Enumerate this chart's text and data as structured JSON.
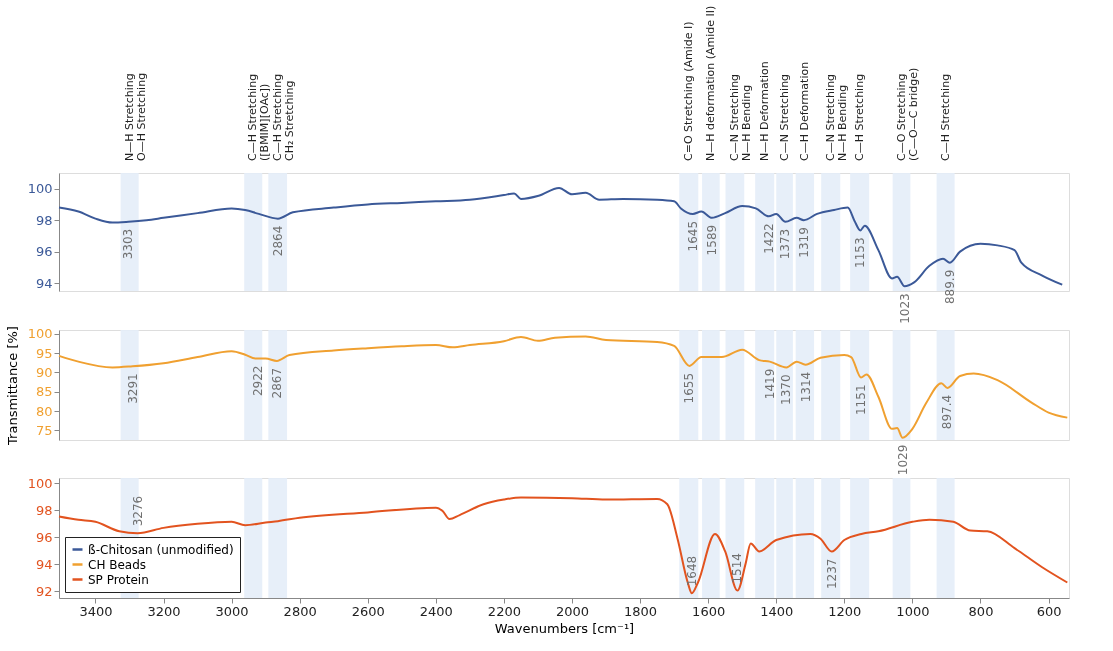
{
  "chart_data": [
    {
      "type": "line",
      "xlim": [
        3507,
        540
      ],
      "xticks": [
        3400,
        3200,
        3000,
        2800,
        2600,
        2400,
        2200,
        2000,
        1800,
        1600,
        1400,
        1200,
        1000,
        800,
        600
      ],
      "ylim": [
        93.5,
        101
      ],
      "yticks": [
        94,
        96,
        98,
        100
      ],
      "tick_labels": "y",
      "series": [
        {
          "name": "ß-Chitosan (unmodified)",
          "color": "#3b5998",
          "x": [
            3507,
            3450,
            3400,
            3350,
            3303,
            3250,
            3200,
            3100,
            3000,
            2960,
            2920,
            2864,
            2820,
            2700,
            2600,
            2500,
            2400,
            2300,
            2200,
            2170,
            2150,
            2098,
            2038,
            2000,
            1960,
            1920,
            1850,
            1750,
            1700,
            1680,
            1645,
            1620,
            1589,
            1550,
            1500,
            1460,
            1422,
            1400,
            1373,
            1340,
            1319,
            1280,
            1230,
            1190,
            1170,
            1153,
            1140,
            1100,
            1060,
            1045,
            1023,
            995,
            950,
            910,
            890,
            860,
            800,
            750,
            700,
            680,
            620,
            560
          ],
          "values": [
            98.8,
            98.55,
            98.1,
            97.85,
            97.9,
            98.0,
            98.15,
            98.45,
            98.75,
            98.65,
            98.4,
            98.1,
            98.5,
            98.8,
            99.0,
            99.1,
            99.2,
            99.3,
            99.6,
            99.7,
            99.35,
            99.55,
            100.05,
            99.65,
            99.75,
            99.3,
            99.35,
            99.3,
            99.2,
            98.75,
            98.4,
            98.55,
            98.15,
            98.45,
            98.9,
            98.75,
            98.25,
            98.4,
            97.9,
            98.15,
            98.0,
            98.4,
            98.65,
            98.8,
            97.95,
            97.35,
            97.65,
            96.1,
            94.3,
            94.4,
            93.8,
            94.05,
            95.1,
            95.55,
            95.3,
            96.0,
            96.5,
            96.4,
            96.1,
            95.3,
            94.5,
            93.9
          ]
        }
      ],
      "bands": [
        {
          "axis": "x",
          "from": 3326,
          "to": 3273,
          "label": "N—H Stretching\nO—H Stretching"
        },
        {
          "axis": "x",
          "from": 2963,
          "to": 2910,
          "label": "C—H Stretching\n([BMIM][OAc])"
        },
        {
          "axis": "x",
          "from": 2892,
          "to": 2837,
          "label": "C—H Stretching\nCH₂ Stretching"
        },
        {
          "axis": "x",
          "from": 1685,
          "to": 1629,
          "label": "C=O Stretching (Amide I)"
        },
        {
          "axis": "x",
          "from": 1618,
          "to": 1566,
          "label": "N—H deformation (Amide II)"
        },
        {
          "axis": "x",
          "from": 1549,
          "to": 1494,
          "label": "C—N Stretching\nN—H Bending"
        },
        {
          "axis": "x",
          "from": 1462,
          "to": 1406,
          "label": "N—H Deformation"
        },
        {
          "axis": "x",
          "from": 1400,
          "to": 1351,
          "label": "C—N Stretching"
        },
        {
          "axis": "x",
          "from": 1343,
          "to": 1289,
          "label": "C—H Deformation"
        },
        {
          "axis": "x",
          "from": 1268,
          "to": 1212,
          "label": "C—N Stretching\nN—H Bending"
        },
        {
          "axis": "x",
          "from": 1183,
          "to": 1127,
          "label": "C—H Stretching"
        },
        {
          "axis": "x",
          "from": 1058,
          "to": 1006,
          "label": "C—O Stretching\n(C—O—C bridge)"
        },
        {
          "axis": "x",
          "from": 929,
          "to": 876,
          "label": "C—H Stretching"
        }
      ],
      "annotations": [
        {
          "text": "3303",
          "x": 3303,
          "y": 97.9
        },
        {
          "text": "2864",
          "x": 2864,
          "y": 98.1
        },
        {
          "text": "1645",
          "x": 1645,
          "y": 98.4
        },
        {
          "text": "1589",
          "x": 1589,
          "y": 98.15
        },
        {
          "text": "1422",
          "x": 1422,
          "y": 98.25
        },
        {
          "text": "1373",
          "x": 1373,
          "y": 97.9
        },
        {
          "text": "1319",
          "x": 1319,
          "y": 98.0
        },
        {
          "text": "1153",
          "x": 1153,
          "y": 97.35
        },
        {
          "text": "1023",
          "x": 1023,
          "y": 93.8
        },
        {
          "text": "889.9",
          "x": 889.9,
          "y": 95.3
        }
      ]
    },
    {
      "type": "line",
      "xlim": [
        3507,
        540
      ],
      "xticks": [
        3400,
        3200,
        3000,
        2800,
        2600,
        2400,
        2200,
        2000,
        1800,
        1600,
        1400,
        1200,
        1000,
        800,
        600
      ],
      "ylim": [
        72.5,
        101
      ],
      "yticks": [
        75,
        80,
        85,
        90,
        95,
        100
      ],
      "tick_labels": "y",
      "ylabel": "Transmittance [%]",
      "series": [
        {
          "name": "CH Beads",
          "color": "#f0a030",
          "x": [
            3507,
            3450,
            3350,
            3291,
            3200,
            3100,
            3000,
            2960,
            2930,
            2900,
            2867,
            2830,
            2700,
            2600,
            2500,
            2400,
            2350,
            2300,
            2200,
            2150,
            2100,
            2050,
            1960,
            1900,
            1750,
            1700,
            1655,
            1620,
            1560,
            1500,
            1450,
            1419,
            1370,
            1340,
            1314,
            1270,
            1200,
            1180,
            1151,
            1135,
            1100,
            1060,
            1045,
            1029,
            1000,
            960,
            915,
            897,
            860,
            820,
            750,
            650,
            600,
            545
          ],
          "values": [
            94.3,
            92.8,
            91.3,
            91.6,
            92.4,
            94.0,
            95.5,
            94.6,
            93.6,
            93.6,
            93.0,
            94.5,
            95.7,
            96.3,
            96.8,
            97.1,
            96.5,
            97.1,
            98.1,
            99.2,
            98.2,
            99.0,
            99.3,
            98.4,
            97.9,
            96.9,
            91.7,
            94.0,
            94.0,
            95.9,
            93.2,
            92.8,
            91.3,
            92.8,
            92.0,
            93.8,
            94.5,
            94.0,
            88.7,
            89.5,
            83.7,
            75.4,
            75.6,
            73.1,
            75.4,
            82.0,
            87.2,
            86.0,
            89.1,
            89.7,
            88.0,
            82.2,
            79.6,
            78.3
          ]
        }
      ],
      "bands": [
        {
          "axis": "x",
          "from": 3326,
          "to": 3273
        },
        {
          "axis": "x",
          "from": 2963,
          "to": 2910
        },
        {
          "axis": "x",
          "from": 2892,
          "to": 2837
        },
        {
          "axis": "x",
          "from": 1685,
          "to": 1629
        },
        {
          "axis": "x",
          "from": 1618,
          "to": 1566
        },
        {
          "axis": "x",
          "from": 1549,
          "to": 1494
        },
        {
          "axis": "x",
          "from": 1462,
          "to": 1406
        },
        {
          "axis": "x",
          "from": 1400,
          "to": 1351
        },
        {
          "axis": "x",
          "from": 1343,
          "to": 1289
        },
        {
          "axis": "x",
          "from": 1268,
          "to": 1212
        },
        {
          "axis": "x",
          "from": 1183,
          "to": 1127
        },
        {
          "axis": "x",
          "from": 1058,
          "to": 1006
        },
        {
          "axis": "x",
          "from": 929,
          "to": 876
        }
      ],
      "annotations": [
        {
          "text": "3291",
          "x": 3291,
          "y": 91.6
        },
        {
          "text": "2922",
          "x": 2922,
          "y": 93.6
        },
        {
          "text": "2867",
          "x": 2867,
          "y": 93.0
        },
        {
          "text": "1655",
          "x": 1655,
          "y": 91.7
        },
        {
          "text": "1419",
          "x": 1419,
          "y": 92.8
        },
        {
          "text": "1370",
          "x": 1370,
          "y": 91.3
        },
        {
          "text": "1314",
          "x": 1314,
          "y": 92.0
        },
        {
          "text": "1151",
          "x": 1151,
          "y": 88.7
        },
        {
          "text": "1029",
          "x": 1029,
          "y": 73.1
        },
        {
          "text": "897.4",
          "x": 897.4,
          "y": 86.0
        }
      ]
    },
    {
      "type": "line",
      "xlim": [
        3507,
        540
      ],
      "xticks": [
        3400,
        3200,
        3000,
        2800,
        2600,
        2400,
        2200,
        2000,
        1800,
        1600,
        1400,
        1200,
        1000,
        800,
        600
      ],
      "ylim": [
        91.5,
        100.4
      ],
      "yticks": [
        92,
        94,
        96,
        98,
        100
      ],
      "xlabel": "Wavenumbers [cm⁻¹]",
      "legend": "bottom left",
      "series": [
        {
          "name": "SP Protein",
          "color": "#e2531f",
          "x": [
            3507,
            3450,
            3400,
            3330,
            3276,
            3200,
            3100,
            3000,
            2960,
            2900,
            2864,
            2800,
            2600,
            2400,
            2380,
            2360,
            2330,
            2260,
            2200,
            2150,
            2000,
            1900,
            1750,
            1720,
            1690,
            1660,
            1648,
            1630,
            1580,
            1550,
            1514,
            1490,
            1475,
            1450,
            1400,
            1300,
            1270,
            1237,
            1200,
            1150,
            1100,
            1000,
            950,
            880,
            830,
            780,
            700,
            620,
            545
          ],
          "values": [
            97.55,
            97.3,
            97.15,
            96.45,
            96.3,
            96.7,
            97.0,
            97.15,
            96.9,
            97.1,
            97.2,
            97.45,
            97.85,
            98.2,
            97.95,
            97.35,
            97.65,
            98.45,
            98.8,
            98.95,
            98.9,
            98.8,
            98.85,
            98.45,
            95.9,
            92.65,
            91.85,
            92.65,
            96.25,
            94.95,
            92.05,
            94.05,
            95.55,
            94.95,
            95.8,
            96.25,
            95.9,
            94.95,
            95.8,
            96.25,
            96.45,
            97.15,
            97.3,
            97.15,
            96.5,
            96.45,
            95.2,
            93.8,
            92.65
          ]
        }
      ],
      "bands": [
        {
          "axis": "x",
          "from": 3326,
          "to": 3273
        },
        {
          "axis": "x",
          "from": 2963,
          "to": 2910
        },
        {
          "axis": "x",
          "from": 2892,
          "to": 2837
        },
        {
          "axis": "x",
          "from": 1685,
          "to": 1629
        },
        {
          "axis": "x",
          "from": 1618,
          "to": 1566
        },
        {
          "axis": "x",
          "from": 1549,
          "to": 1494
        },
        {
          "axis": "x",
          "from": 1462,
          "to": 1406
        },
        {
          "axis": "x",
          "from": 1400,
          "to": 1351
        },
        {
          "axis": "x",
          "from": 1343,
          "to": 1289
        },
        {
          "axis": "x",
          "from": 1268,
          "to": 1212
        },
        {
          "axis": "x",
          "from": 1183,
          "to": 1127
        },
        {
          "axis": "x",
          "from": 1058,
          "to": 1006
        },
        {
          "axis": "x",
          "from": 929,
          "to": 876
        }
      ],
      "annotations": [
        {
          "text": "3276",
          "x": 3276,
          "y": 96.3
        },
        {
          "text": "1648",
          "x": 1648,
          "y": 91.85
        },
        {
          "text": "1514",
          "x": 1514,
          "y": 92.05
        },
        {
          "text": "1237",
          "x": 1237,
          "y": 94.95
        }
      ]
    }
  ]
}
